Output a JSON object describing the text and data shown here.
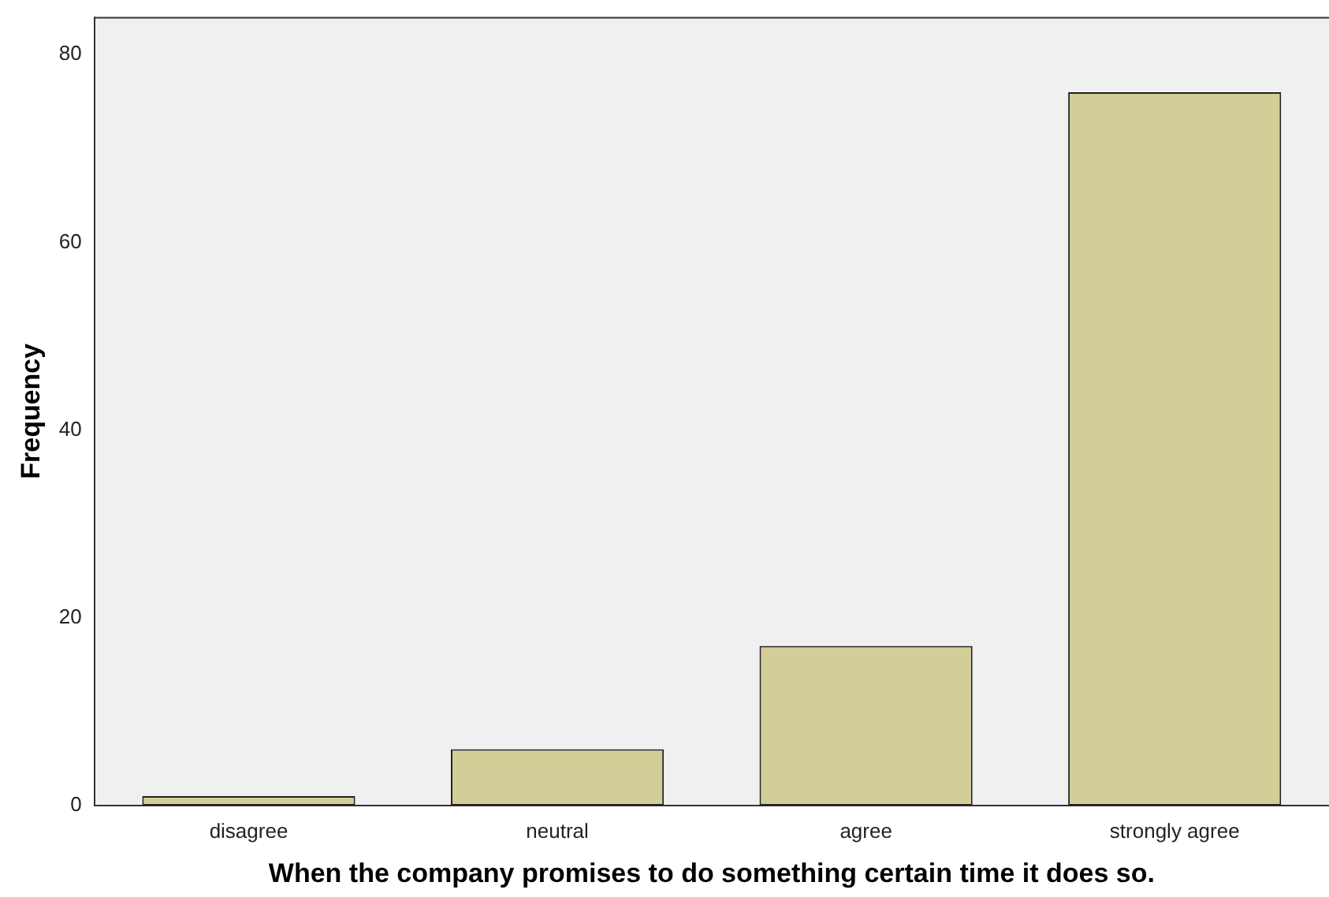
{
  "chart_data": {
    "type": "bar",
    "xlabel": "When the company promises to do something certain time it does so.",
    "ylabel": "Frequency",
    "categories": [
      "disagree",
      "neutral",
      "agree",
      "strongly agree"
    ],
    "values": [
      1,
      6,
      17,
      76
    ],
    "color": "#d3ce97",
    "ylim": [
      0,
      84
    ],
    "yticks": [
      0,
      20,
      40,
      60,
      80
    ],
    "grid": false,
    "legend": false
  }
}
